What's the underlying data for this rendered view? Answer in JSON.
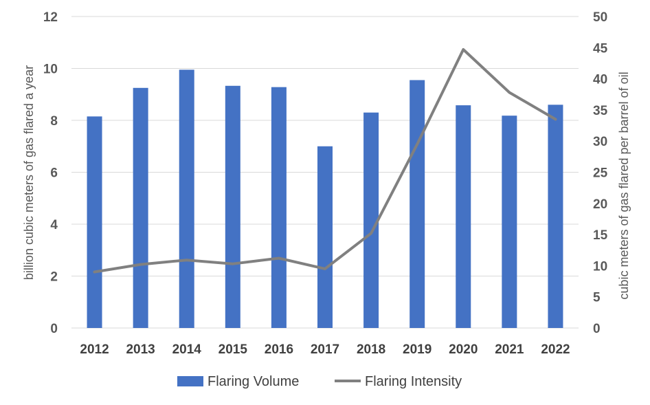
{
  "chart_data": {
    "type": "bar",
    "categories": [
      "2012",
      "2013",
      "2014",
      "2015",
      "2016",
      "2017",
      "2018",
      "2019",
      "2020",
      "2021",
      "2022"
    ],
    "series": [
      {
        "name": "Flaring Volume",
        "type": "bar",
        "axis": "left",
        "color": "#4472c4",
        "values": [
          8.15,
          9.25,
          9.95,
          9.33,
          9.28,
          7.0,
          8.3,
          9.55,
          8.58,
          8.18,
          8.6
        ]
      },
      {
        "name": "Flaring Intensity",
        "type": "line",
        "axis": "right",
        "color": "#808080",
        "values": [
          9.0,
          10.2,
          10.9,
          10.3,
          11.2,
          9.5,
          15.2,
          29.5,
          44.7,
          37.8,
          33.5
        ]
      }
    ],
    "ylabel": "billion cubic meters of gas flared a year",
    "y2label": "cubic meters of gas flared per barrel of oil",
    "ylim": [
      0,
      12
    ],
    "y2lim": [
      0,
      50
    ],
    "yticks": [
      0,
      2,
      4,
      6,
      8,
      10,
      12
    ],
    "y2ticks": [
      0,
      5,
      10,
      15,
      20,
      25,
      30,
      35,
      40,
      45,
      50
    ],
    "grid": true,
    "legend": "bottom"
  }
}
